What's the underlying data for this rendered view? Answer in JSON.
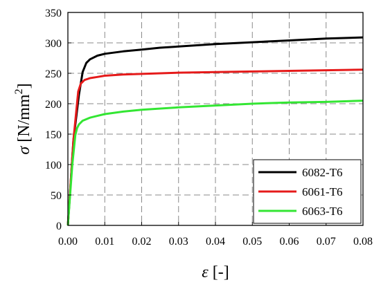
{
  "chart_data": {
    "type": "line",
    "xlabel": "ε [-]",
    "ylabel": "σ [N/mm²]",
    "ylabel_symbol": "σ",
    "ylabel_unit_prefix": "[N/mm",
    "ylabel_exponent": "2",
    "ylabel_unit_suffix": "]",
    "xlim": [
      0,
      0.08
    ],
    "ylim": [
      0,
      350
    ],
    "xticks": [
      0,
      0.01,
      0.02,
      0.03,
      0.04,
      0.05,
      0.06,
      0.07,
      0.08
    ],
    "xtick_labels": [
      "0.00",
      "0.01",
      "0.02",
      "0.03",
      "0.04",
      "0.05",
      "0.06",
      "0.07",
      "0.08"
    ],
    "yticks": [
      0,
      50,
      100,
      150,
      200,
      250,
      300,
      350
    ],
    "ytick_labels": [
      "0",
      "50",
      "100",
      "150",
      "200",
      "250",
      "300",
      "350"
    ],
    "grid": true,
    "legend_position": "bottom-right",
    "series": [
      {
        "name": "6082-T6",
        "color": "#000000",
        "x": [
          0,
          0.0015,
          0.003,
          0.004,
          0.005,
          0.006,
          0.008,
          0.01,
          0.015,
          0.02,
          0.025,
          0.03,
          0.04,
          0.05,
          0.06,
          0.07,
          0.08
        ],
        "y": [
          0,
          140,
          215,
          252,
          267,
          273,
          279,
          282,
          286,
          289,
          292,
          294,
          298,
          301,
          304,
          307,
          309
        ]
      },
      {
        "name": "6061-T6",
        "color": "#e51a1a",
        "x": [
          0,
          0.0015,
          0.0028,
          0.0035,
          0.0045,
          0.006,
          0.008,
          0.01,
          0.015,
          0.02,
          0.03,
          0.04,
          0.05,
          0.06,
          0.07,
          0.08
        ],
        "y": [
          0,
          140,
          220,
          233,
          239,
          242,
          244,
          246,
          248,
          249,
          251,
          252,
          253,
          254,
          255,
          256
        ]
      },
      {
        "name": "6063-T6",
        "color": "#33e633",
        "x": [
          0,
          0.0012,
          0.002,
          0.0025,
          0.003,
          0.004,
          0.006,
          0.008,
          0.01,
          0.015,
          0.02,
          0.03,
          0.04,
          0.05,
          0.06,
          0.07,
          0.08
        ],
        "y": [
          0,
          100,
          148,
          160,
          166,
          172,
          177,
          180,
          183,
          187,
          190,
          194,
          197,
          200,
          202,
          203,
          205
        ]
      }
    ]
  }
}
